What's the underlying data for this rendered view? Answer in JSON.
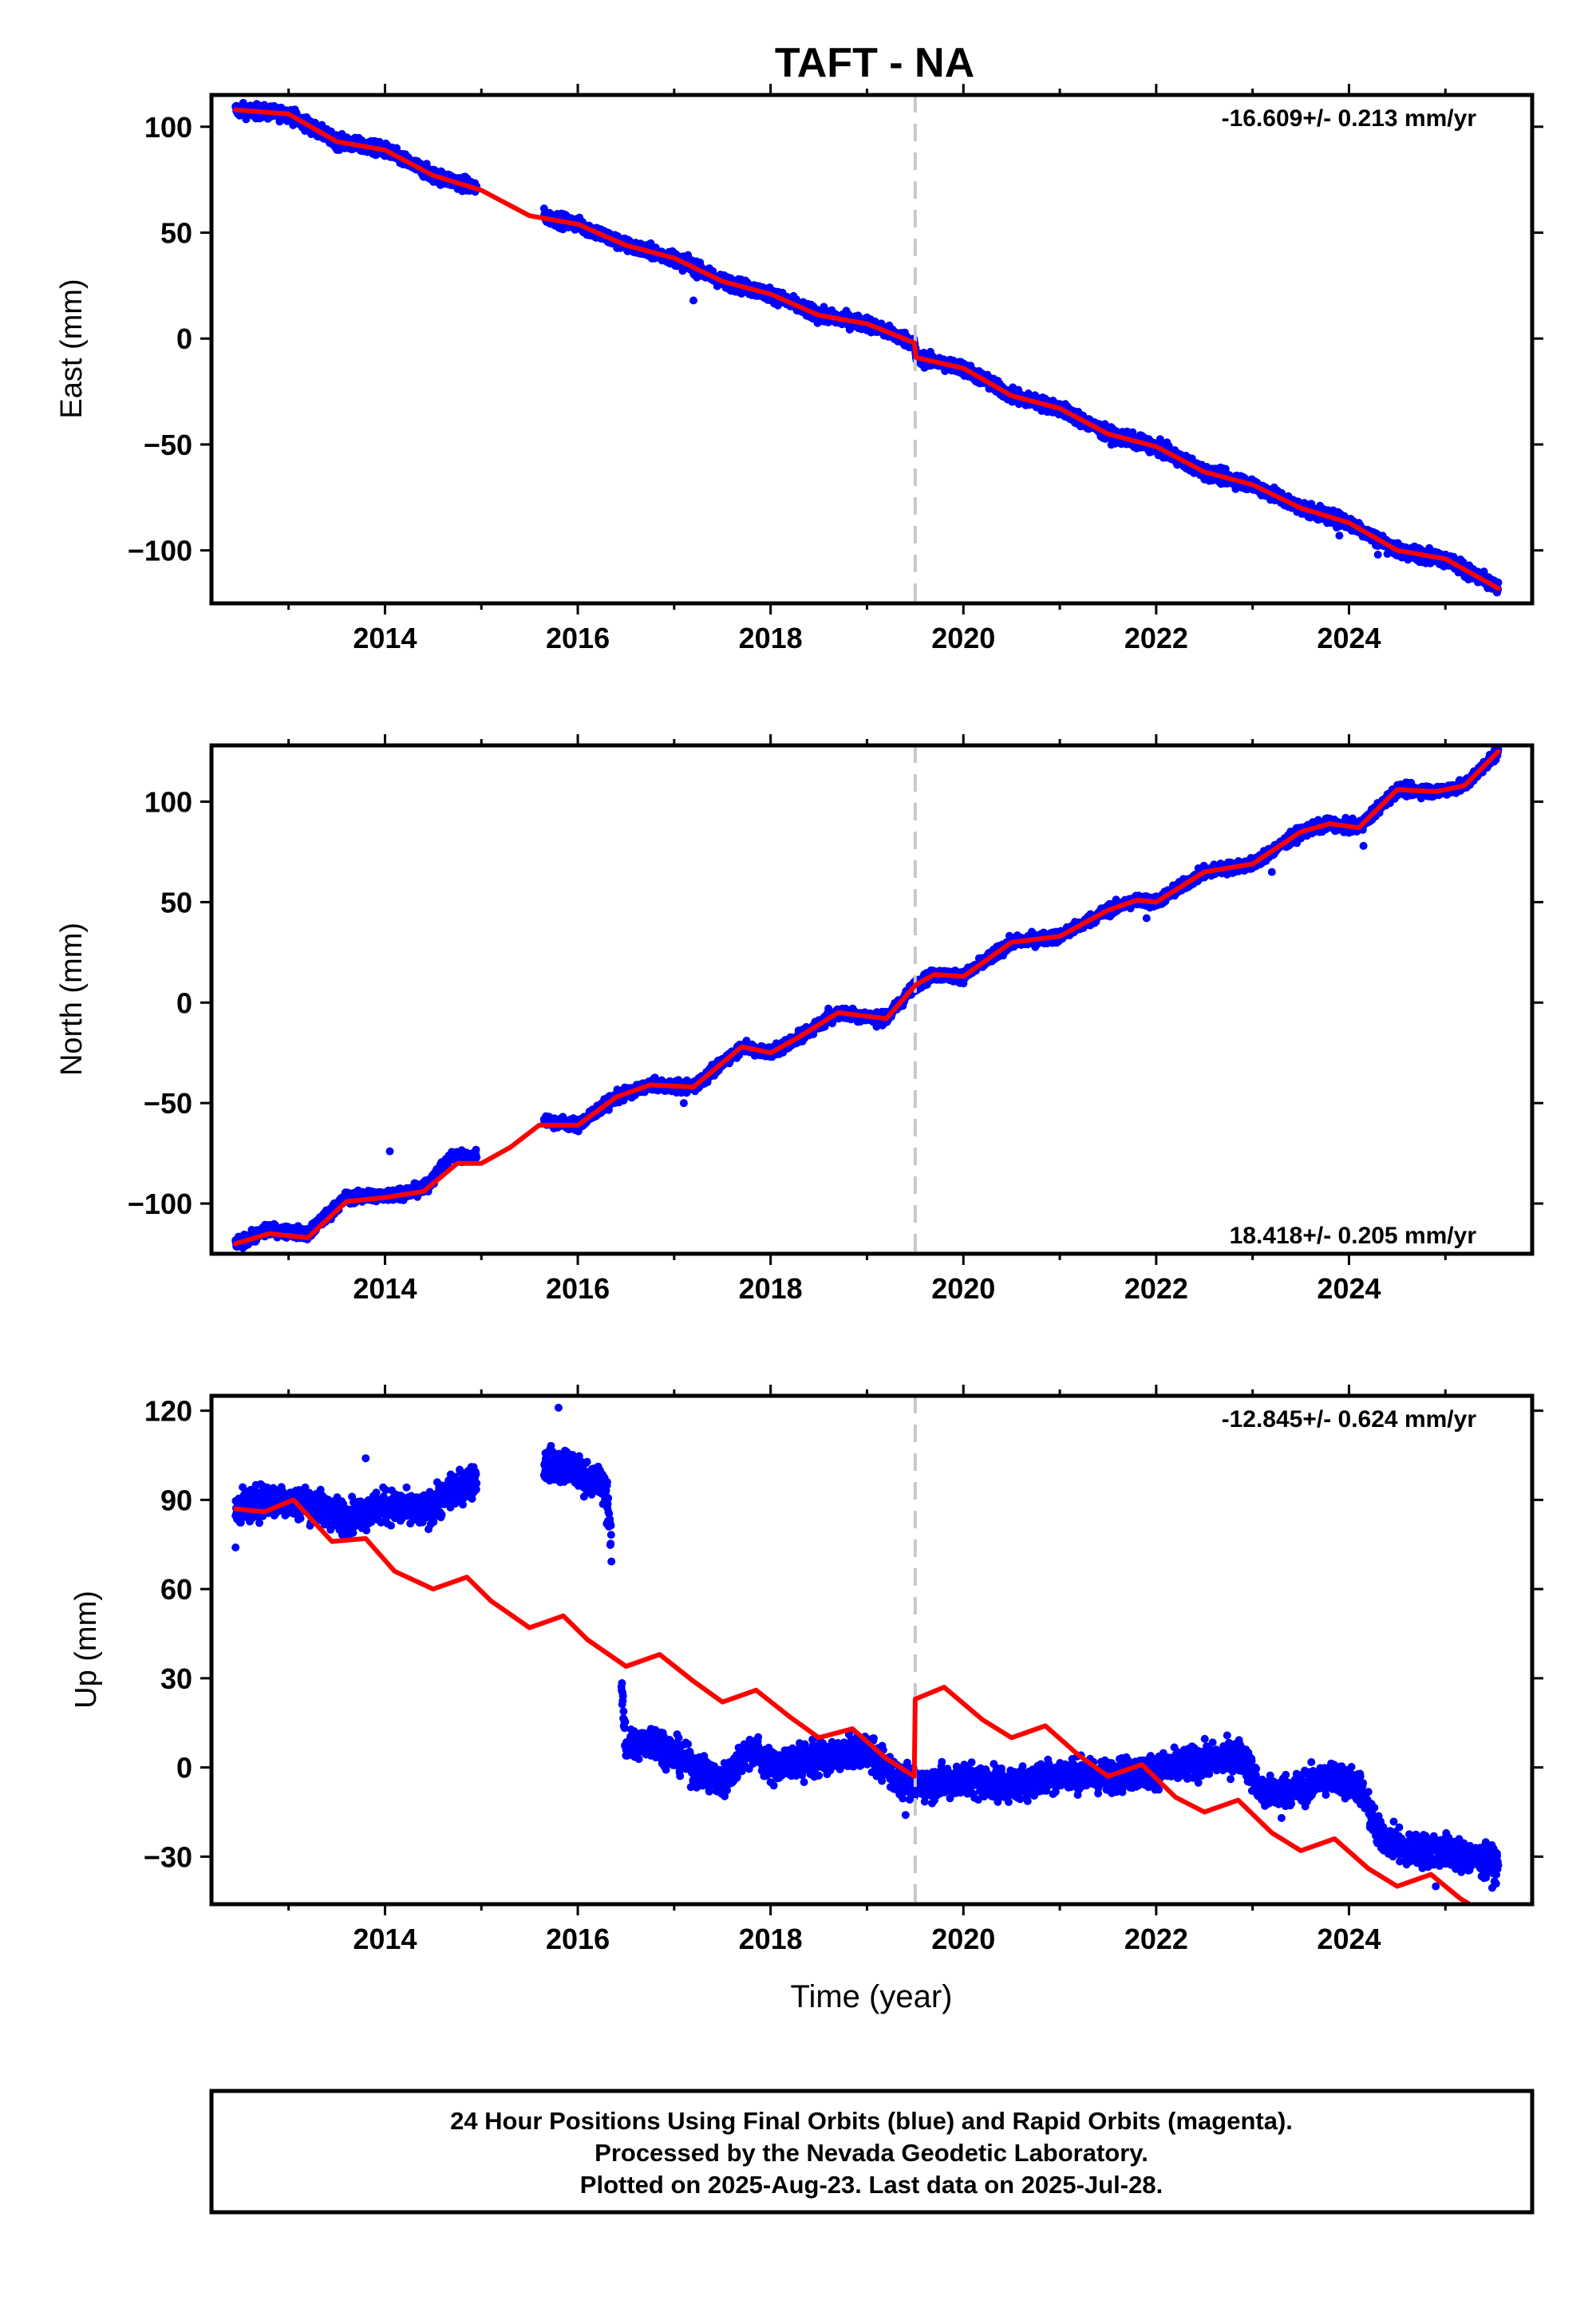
{
  "title": "TAFT - NA",
  "colors": {
    "final": "#0000ff",
    "model": "#ff0000",
    "marker": "#c8c8c8",
    "frame": "#000000"
  },
  "marker_year": 2019.5,
  "footer": [
    "24 Hour Positions Using Final Orbits (blue) and Rapid Orbits (magenta).",
    "Processed by the Nevada Geodetic Laboratory.",
    "Plotted on 2025-Aug-23. Last data on 2025-Jul-28."
  ],
  "chart_data": [
    {
      "type": "scatter",
      "name": "east",
      "ylabel": "East (mm)",
      "xlabel": "",
      "rate": "-16.609+/- 0.213 mm/yr",
      "rate_position": "top-right",
      "xlim": [
        2012.2,
        2025.9
      ],
      "ylim": [
        -125,
        115
      ],
      "xticks": [
        2014,
        2016,
        2018,
        2020,
        2022,
        2024
      ],
      "yticks": [
        100,
        50,
        0,
        -50,
        -100
      ],
      "ytick_labels": [
        "100",
        "50",
        "0",
        "−50",
        "−100"
      ],
      "gaps": [
        [
          2014.95,
          2015.65
        ],
        [
          2025.7,
          2030
        ]
      ],
      "model": {
        "x": [
          2012.45,
          2013.0,
          2013.5,
          2014.0,
          2014.5,
          2015.0,
          2015.5,
          2016.0,
          2016.5,
          2017.0,
          2017.5,
          2018.0,
          2018.5,
          2019.0,
          2019.49,
          2019.51,
          2020.0,
          2020.5,
          2021.0,
          2021.5,
          2022.0,
          2022.5,
          2023.0,
          2023.5,
          2024.0,
          2024.5,
          2025.0,
          2025.55
        ],
        "y": [
          108,
          106,
          93,
          89,
          77,
          70,
          58,
          54,
          44,
          38,
          27,
          21,
          11,
          7,
          -2,
          -9,
          -14,
          -27,
          -33,
          -45,
          -51,
          -63,
          -69,
          -80,
          -87,
          -100,
          -104,
          -118
        ]
      },
      "observed": {
        "x": [
          2012.45,
          2013.0,
          2013.5,
          2014.0,
          2014.5,
          2014.9,
          2015.7,
          2016.0,
          2016.5,
          2017.0,
          2017.5,
          2018.0,
          2018.5,
          2019.0,
          2019.49,
          2019.51,
          2020.0,
          2020.5,
          2021.0,
          2021.5,
          2022.0,
          2022.5,
          2023.0,
          2023.5,
          2024.0,
          2024.5,
          2025.0,
          2025.55
        ],
        "y": [
          108,
          106,
          93,
          89,
          77,
          72,
          57,
          54,
          44,
          38,
          27,
          21,
          11,
          7,
          -2,
          -9,
          -14,
          -27,
          -33,
          -45,
          -51,
          -63,
          -69,
          -80,
          -87,
          -100,
          -104,
          -118
        ]
      },
      "scatter_sd": 2.2,
      "outliers": [
        [
          2017.2,
          18
        ],
        [
          2014.6,
          78
        ],
        [
          2024.3,
          -102
        ],
        [
          2019.0,
          10
        ],
        [
          2023.9,
          -93
        ]
      ]
    },
    {
      "type": "scatter",
      "name": "north",
      "ylabel": "North (mm)",
      "xlabel": "",
      "rate": "18.418+/- 0.205 mm/yr",
      "rate_position": "bottom-right",
      "xlim": [
        2012.2,
        2025.9
      ],
      "ylim": [
        -125,
        128
      ],
      "xticks": [
        2014,
        2016,
        2018,
        2020,
        2022,
        2024
      ],
      "yticks": [
        100,
        50,
        0,
        -50,
        -100
      ],
      "ytick_labels": [
        "100",
        "50",
        "0",
        "−50",
        "−100"
      ],
      "gaps": [
        [
          2014.95,
          2015.65
        ],
        [
          2025.7,
          2030
        ]
      ],
      "model": {
        "x": [
          2012.45,
          2012.8,
          2013.2,
          2013.6,
          2014.0,
          2014.4,
          2014.75,
          2015.0,
          2015.3,
          2015.6,
          2016.0,
          2016.4,
          2016.75,
          2017.2,
          2017.7,
          2018.0,
          2018.3,
          2018.7,
          2019.2,
          2019.49,
          2019.51,
          2019.7,
          2020.0,
          2020.5,
          2021.0,
          2021.5,
          2021.8,
          2022.0,
          2022.5,
          2023.0,
          2023.5,
          2023.8,
          2024.1,
          2024.5,
          2024.9,
          2025.2,
          2025.55
        ],
        "y": [
          -120,
          -115,
          -117,
          -99,
          -97,
          -94,
          -80,
          -80,
          -72,
          -61,
          -61,
          -47,
          -41,
          -42,
          -22,
          -25,
          -17,
          -5,
          -8,
          8,
          9,
          14,
          13,
          30,
          33,
          46,
          51,
          50,
          65,
          69,
          85,
          89,
          87,
          106,
          105,
          108,
          125
        ]
      },
      "observed": {
        "x": [
          2012.45,
          2012.8,
          2013.2,
          2013.6,
          2014.0,
          2014.4,
          2014.7,
          2014.9,
          2015.6,
          2016.0,
          2016.4,
          2016.75,
          2017.2,
          2017.7,
          2018.0,
          2018.3,
          2018.7,
          2019.2,
          2019.49,
          2019.51,
          2019.7,
          2020.0,
          2020.5,
          2021.0,
          2021.5,
          2021.8,
          2022.0,
          2022.5,
          2023.0,
          2023.5,
          2023.8,
          2024.1,
          2024.5,
          2024.9,
          2025.2,
          2025.55
        ],
        "y": [
          -120,
          -113,
          -115,
          -97,
          -96,
          -93,
          -76,
          -77,
          -58,
          -61,
          -47,
          -41,
          -42,
          -22,
          -25,
          -17,
          -5,
          -8,
          8,
          9,
          14,
          13,
          30,
          33,
          46,
          51,
          50,
          65,
          69,
          85,
          89,
          87,
          106,
          105,
          108,
          125
        ]
      },
      "scatter_sd": 2.0,
      "outliers": [
        [
          2014.05,
          -74
        ],
        [
          2017.1,
          -50
        ],
        [
          2018.6,
          -3
        ],
        [
          2019.1,
          -12
        ],
        [
          2023.2,
          65
        ],
        [
          2024.15,
          78
        ],
        [
          2021.9,
          42
        ]
      ]
    },
    {
      "type": "scatter",
      "name": "up",
      "ylabel": "Up (mm)",
      "xlabel": "Time (year)",
      "rate": "-12.845+/- 0.624 mm/yr",
      "rate_position": "top-right",
      "xlim": [
        2012.2,
        2025.9
      ],
      "ylim": [
        -46,
        125
      ],
      "xticks": [
        2014,
        2016,
        2018,
        2020,
        2022,
        2024
      ],
      "yticks": [
        120,
        90,
        60,
        30,
        0,
        -30
      ],
      "ytick_labels": [
        "120",
        "90",
        "60",
        "30",
        "0",
        "−30"
      ],
      "gaps": [
        [
          2014.95,
          2015.65
        ],
        [
          2016.35,
          2016.45
        ],
        [
          2025.7,
          2030
        ]
      ],
      "model": {
        "x": [
          2012.45,
          2012.75,
          2013.05,
          2013.45,
          2013.8,
          2014.1,
          2014.5,
          2014.85,
          2015.1,
          2015.5,
          2015.85,
          2016.1,
          2016.5,
          2016.85,
          2017.2,
          2017.5,
          2017.85,
          2018.2,
          2018.5,
          2018.85,
          2019.2,
          2019.49,
          2019.5,
          2019.8,
          2020.2,
          2020.5,
          2020.85,
          2021.2,
          2021.5,
          2021.85,
          2022.2,
          2022.5,
          2022.85,
          2023.2,
          2023.5,
          2023.85,
          2024.2,
          2024.5,
          2024.85,
          2025.15,
          2025.3
        ],
        "y": [
          87,
          86,
          90,
          76,
          77,
          66,
          60,
          64,
          56,
          47,
          51,
          43,
          34,
          38,
          29,
          22,
          26,
          17,
          10,
          13,
          3,
          -3,
          23,
          27,
          16,
          10,
          14,
          4,
          -3,
          1,
          -10,
          -15,
          -11,
          -22,
          -28,
          -24,
          -34,
          -40,
          -36,
          -44,
          -47
        ]
      },
      "observed": {
        "x": [
          2012.45,
          2012.8,
          2013.2,
          2013.6,
          2014.0,
          2014.4,
          2014.85,
          2015.7,
          2015.9,
          2016.3,
          2016.5,
          2016.8,
          2017.2,
          2017.5,
          2017.8,
          2018.0,
          2018.5,
          2019.0,
          2019.3,
          2019.5,
          2020.0,
          2020.5,
          2021.0,
          2021.5,
          2022.0,
          2022.5,
          2022.9,
          2023.1,
          2023.5,
          2023.8,
          2024.1,
          2024.3,
          2024.6,
          2025.0,
          2025.55
        ],
        "y": [
          87,
          90,
          89,
          84,
          88,
          86,
          96,
          102,
          101,
          94,
          7,
          9,
          0,
          -5,
          7,
          0,
          3,
          6,
          -3,
          -6,
          -4,
          -6,
          -2,
          -3,
          -1,
          2,
          4,
          -9,
          -7,
          -3,
          -6,
          -22,
          -28,
          -28,
          -33
        ]
      },
      "scatter_sd": 3.8,
      "outliers": [
        [
          2015.8,
          121
        ],
        [
          2016.3,
          82
        ],
        [
          2013.8,
          104
        ],
        [
          2012.45,
          74
        ],
        [
          2019.4,
          -16
        ],
        [
          2023.3,
          -17
        ],
        [
          2024.9,
          -40
        ]
      ]
    }
  ]
}
